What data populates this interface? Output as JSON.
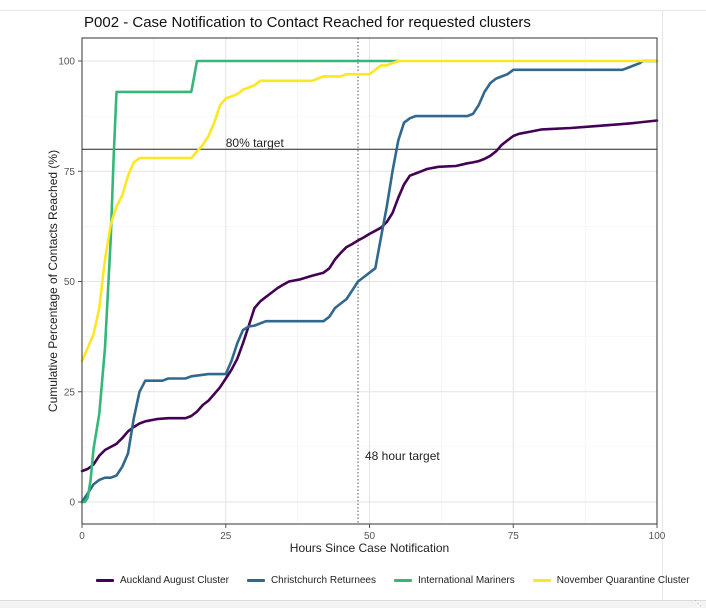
{
  "chart_data": {
    "type": "line",
    "title": "P002 - Case Notification to Contact Reached for requested clusters",
    "xlabel": "Hours Since Case Notification",
    "ylabel": "Cumulative Percentage of Contacts Reached (%)",
    "xlim": [
      0,
      100
    ],
    "ylim": [
      0,
      100
    ],
    "x_ticks": [
      "0",
      "25",
      "50",
      "75",
      "100"
    ],
    "y_ticks": [
      "0",
      "25",
      "50",
      "75",
      "100"
    ],
    "grid": true,
    "legend_position": "bottom",
    "reference_lines": [
      {
        "orientation": "horizontal",
        "value": 80,
        "label": "80% target",
        "style": "solid"
      },
      {
        "orientation": "vertical",
        "value": 48,
        "label": "48 hour target",
        "style": "dotted"
      }
    ],
    "series": [
      {
        "name": "Auckland August Cluster",
        "color": "#440154",
        "points": [
          [
            0,
            7
          ],
          [
            1,
            7.5
          ],
          [
            2,
            8.5
          ],
          [
            3,
            10.5
          ],
          [
            4,
            11.8
          ],
          [
            5,
            12.5
          ],
          [
            6,
            13.2
          ],
          [
            7,
            14.5
          ],
          [
            8,
            16
          ],
          [
            9,
            17
          ],
          [
            10,
            17.8
          ],
          [
            11,
            18.3
          ],
          [
            13,
            18.8
          ],
          [
            15,
            19
          ],
          [
            18,
            19
          ],
          [
            19,
            19.5
          ],
          [
            20,
            20.5
          ],
          [
            21,
            22
          ],
          [
            22,
            23
          ],
          [
            23,
            24.5
          ],
          [
            24,
            26
          ],
          [
            25,
            28
          ],
          [
            26,
            30
          ],
          [
            27,
            32.5
          ],
          [
            28,
            36
          ],
          [
            29,
            40
          ],
          [
            30,
            44
          ],
          [
            31,
            45.5
          ],
          [
            32,
            46.5
          ],
          [
            33,
            47.5
          ],
          [
            34,
            48.5
          ],
          [
            35,
            49.3
          ],
          [
            36,
            50
          ],
          [
            38,
            50.5
          ],
          [
            40,
            51.3
          ],
          [
            42,
            52
          ],
          [
            43,
            53
          ],
          [
            44,
            55
          ],
          [
            45,
            56.5
          ],
          [
            46,
            57.8
          ],
          [
            47,
            58.5
          ],
          [
            48,
            59.3
          ],
          [
            49,
            60
          ],
          [
            50,
            60.8
          ],
          [
            51,
            61.5
          ],
          [
            52,
            62.2
          ],
          [
            53,
            63.5
          ],
          [
            54,
            65.5
          ],
          [
            55,
            69
          ],
          [
            56,
            72
          ],
          [
            57,
            74
          ],
          [
            58,
            74.5
          ],
          [
            59,
            75
          ],
          [
            60,
            75.5
          ],
          [
            62,
            76
          ],
          [
            65,
            76.2
          ],
          [
            67,
            76.8
          ],
          [
            68,
            77
          ],
          [
            69,
            77.3
          ],
          [
            70,
            77.8
          ],
          [
            71,
            78.5
          ],
          [
            72,
            79.5
          ],
          [
            73,
            81
          ],
          [
            74,
            82
          ],
          [
            75,
            83
          ],
          [
            76,
            83.5
          ],
          [
            78,
            84
          ],
          [
            80,
            84.5
          ],
          [
            85,
            84.8
          ],
          [
            90,
            85.3
          ],
          [
            95,
            85.8
          ],
          [
            100,
            86.5
          ]
        ]
      },
      {
        "name": "Christchurch Returnees",
        "color": "#31688e",
        "points": [
          [
            0,
            0
          ],
          [
            0.5,
            1
          ],
          [
            1,
            2
          ],
          [
            2,
            4
          ],
          [
            3,
            5
          ],
          [
            4,
            5.5
          ],
          [
            5,
            5.5
          ],
          [
            6,
            6
          ],
          [
            7,
            8
          ],
          [
            8,
            11
          ],
          [
            9,
            19
          ],
          [
            10,
            25
          ],
          [
            11,
            27.5
          ],
          [
            13,
            27.5
          ],
          [
            14,
            27.5
          ],
          [
            15,
            28
          ],
          [
            18,
            28
          ],
          [
            19,
            28.5
          ],
          [
            22,
            29
          ],
          [
            25,
            29
          ],
          [
            26,
            32
          ],
          [
            27,
            36
          ],
          [
            28,
            39
          ],
          [
            29,
            39.8
          ],
          [
            30,
            40
          ],
          [
            31,
            40.5
          ],
          [
            32,
            41
          ],
          [
            35,
            41
          ],
          [
            42,
            41
          ],
          [
            43,
            42
          ],
          [
            44,
            44
          ],
          [
            45,
            45
          ],
          [
            46,
            46
          ],
          [
            47,
            48
          ],
          [
            48,
            50
          ],
          [
            49,
            51
          ],
          [
            50,
            52
          ],
          [
            51,
            53
          ],
          [
            52,
            60
          ],
          [
            53,
            67
          ],
          [
            54,
            75
          ],
          [
            55,
            82
          ],
          [
            56,
            86
          ],
          [
            57,
            87
          ],
          [
            58,
            87.5
          ],
          [
            62,
            87.5
          ],
          [
            67,
            87.5
          ],
          [
            68,
            88
          ],
          [
            69,
            90
          ],
          [
            70,
            93
          ],
          [
            71,
            95
          ],
          [
            72,
            96
          ],
          [
            73,
            96.5
          ],
          [
            74,
            97
          ],
          [
            75,
            98
          ],
          [
            80,
            98
          ],
          [
            85,
            98
          ],
          [
            90,
            98
          ],
          [
            94,
            98
          ],
          [
            95,
            98.5
          ],
          [
            96,
            99
          ],
          [
            97,
            99.5
          ],
          [
            97.5,
            100
          ],
          [
            100,
            100
          ]
        ]
      },
      {
        "name": "International Mariners",
        "color": "#35b779",
        "points": [
          [
            0,
            0
          ],
          [
            0.5,
            0
          ],
          [
            1,
            1
          ],
          [
            1.5,
            5
          ],
          [
            2,
            12
          ],
          [
            3,
            20
          ],
          [
            4,
            35
          ],
          [
            5,
            60
          ],
          [
            5.5,
            78
          ],
          [
            6,
            93
          ],
          [
            10,
            93
          ],
          [
            15,
            93
          ],
          [
            19,
            93
          ],
          [
            20,
            100
          ],
          [
            55,
            100
          ]
        ]
      },
      {
        "name": "November Quarantine Cluster",
        "color": "#fde725",
        "points": [
          [
            0,
            32
          ],
          [
            1,
            35
          ],
          [
            2,
            38
          ],
          [
            3,
            44
          ],
          [
            4,
            55
          ],
          [
            5,
            63
          ],
          [
            6,
            67
          ],
          [
            7,
            69.5
          ],
          [
            8,
            74
          ],
          [
            9,
            77
          ],
          [
            10,
            78
          ],
          [
            15,
            78
          ],
          [
            19,
            78
          ],
          [
            20,
            79.5
          ],
          [
            21,
            81
          ],
          [
            22,
            83
          ],
          [
            23,
            86
          ],
          [
            24,
            90
          ],
          [
            25,
            91.5
          ],
          [
            26,
            92
          ],
          [
            27,
            92.5
          ],
          [
            28,
            93.5
          ],
          [
            29,
            94
          ],
          [
            30,
            94.5
          ],
          [
            31,
            95.5
          ],
          [
            35,
            95.5
          ],
          [
            40,
            95.5
          ],
          [
            41,
            96
          ],
          [
            42,
            96.5
          ],
          [
            45,
            96.5
          ],
          [
            46,
            97
          ],
          [
            50,
            97
          ],
          [
            51,
            98
          ],
          [
            52,
            99
          ],
          [
            53,
            99
          ],
          [
            54,
            99.5
          ],
          [
            55,
            100
          ],
          [
            100,
            100
          ]
        ]
      }
    ]
  }
}
